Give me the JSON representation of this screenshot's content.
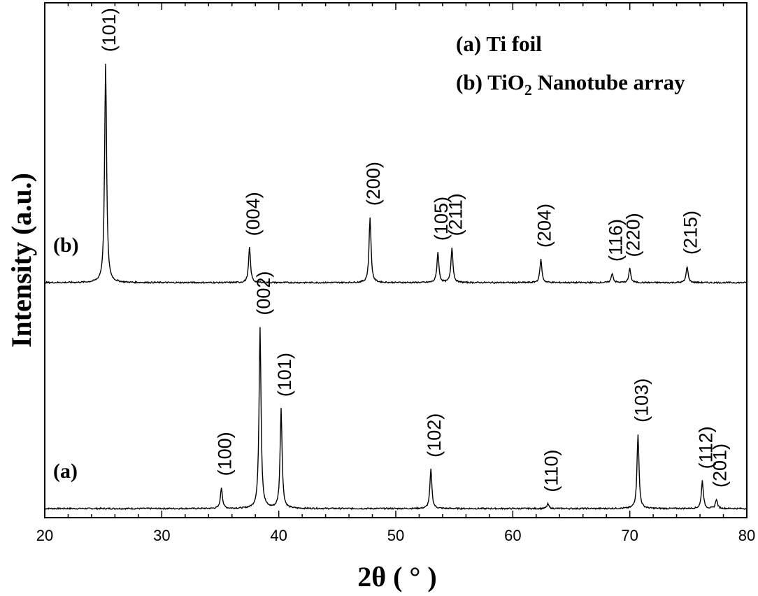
{
  "chart_data": {
    "type": "line",
    "xlabel": "2θ ( ° )",
    "ylabel": "Intensity (a.u.)",
    "xlim": [
      20,
      80
    ],
    "x_ticks": [
      "20",
      "30",
      "40",
      "50",
      "60",
      "70",
      "80"
    ],
    "y_ticks_shown": false,
    "legend": {
      "placement": "top-right",
      "line_a": "(a) Ti foil",
      "line_b_prefix": "(b) TiO",
      "line_b_sub": "2",
      "line_b_suffix": " Nanotube array"
    },
    "series": [
      {
        "tag": "(a)",
        "baseline": 0.03,
        "peaks": [
          {
            "x": 35.1,
            "height": 0.09,
            "label": "(100)"
          },
          {
            "x": 38.4,
            "height": 0.78,
            "label": "(002)"
          },
          {
            "x": 40.2,
            "height": 0.43,
            "label": "(101)"
          },
          {
            "x": 53.0,
            "height": 0.17,
            "label": "(102)"
          },
          {
            "x": 63.0,
            "height": 0.02,
            "label": "(110)"
          },
          {
            "x": 70.7,
            "height": 0.32,
            "label": "(103)"
          },
          {
            "x": 76.2,
            "height": 0.12,
            "label": "(112)"
          },
          {
            "x": 77.4,
            "height": 0.04,
            "label": "(201)"
          }
        ]
      },
      {
        "tag": "(b)",
        "baseline": 1.0,
        "peaks": [
          {
            "x": 25.2,
            "height": 0.94,
            "label": "(101)"
          },
          {
            "x": 37.5,
            "height": 0.15,
            "label": "(004)"
          },
          {
            "x": 47.8,
            "height": 0.28,
            "label": "(200)"
          },
          {
            "x": 53.6,
            "height": 0.13,
            "label": "(105)"
          },
          {
            "x": 54.8,
            "height": 0.15,
            "label": "(211)"
          },
          {
            "x": 62.4,
            "height": 0.1,
            "label": "(204)"
          },
          {
            "x": 68.5,
            "height": 0.04,
            "label": "(116)"
          },
          {
            "x": 70.0,
            "height": 0.06,
            "label": "(220)"
          },
          {
            "x": 74.9,
            "height": 0.07,
            "label": "(215)"
          }
        ]
      }
    ]
  }
}
